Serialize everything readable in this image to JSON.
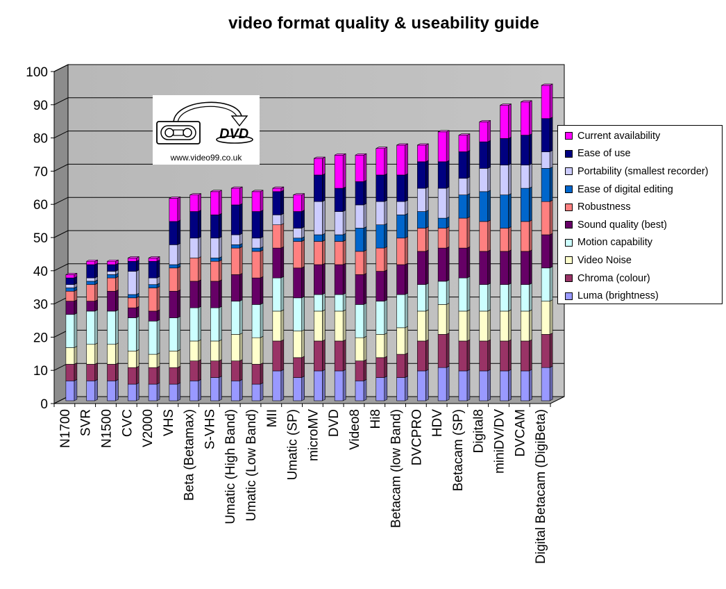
{
  "chart_data": {
    "type": "bar",
    "stacked": true,
    "title": "video format quality & useability guide",
    "ylim": [
      0,
      100
    ],
    "yticks": [
      0,
      10,
      20,
      30,
      40,
      50,
      60,
      70,
      80,
      90,
      100
    ],
    "grid": true,
    "legend_position": "right",
    "categories": [
      "N1700",
      "SVR",
      "N1500",
      "CVC",
      "V2000",
      "VHS",
      "Beta (Betamax)",
      "S-VHS",
      "Umatic (High Band)",
      "Umatic (Low Band)",
      "MII",
      "Umatic (SP)",
      "microMV",
      "DVD",
      "Video8",
      "Hi8",
      "Betacam (low Band)",
      "DVCPRO",
      "HDV",
      "Betacam (SP)",
      "Digital8",
      "miniDV/DV",
      "DVCAM",
      "Digital Betacam (DigiBeta)"
    ],
    "series": [
      {
        "name": "Luma (brightness)",
        "color": "#9999ff",
        "values": [
          6,
          6,
          6,
          5,
          5,
          5,
          6,
          7,
          6,
          5,
          9,
          7,
          9,
          9,
          6,
          7,
          7,
          9,
          10,
          9,
          9,
          9,
          9,
          10
        ]
      },
      {
        "name": "Chroma (colour)",
        "color": "#993366",
        "values": [
          5,
          5,
          5,
          5,
          5,
          5,
          6,
          5,
          6,
          6,
          9,
          6,
          9,
          9,
          6,
          6,
          7,
          9,
          10,
          9,
          9,
          9,
          9,
          10
        ]
      },
      {
        "name": "Video Noise",
        "color": "#ffffcc",
        "values": [
          5,
          6,
          6,
          5,
          4,
          5,
          6,
          6,
          8,
          8,
          9,
          8,
          9,
          9,
          7,
          7,
          8,
          9,
          9,
          9,
          9,
          9,
          9,
          10
        ]
      },
      {
        "name": "Motion capability",
        "color": "#ccffff",
        "values": [
          10,
          10,
          10,
          10,
          10,
          10,
          10,
          10,
          10,
          10,
          10,
          10,
          5,
          5,
          10,
          10,
          10,
          8,
          7,
          10,
          8,
          8,
          8,
          10
        ]
      },
      {
        "name": "Sound quality (best)",
        "color": "#660066",
        "values": [
          4,
          3,
          6,
          3,
          3,
          8,
          8,
          8,
          8,
          8,
          9,
          9,
          9,
          9,
          9,
          9,
          9,
          10,
          10,
          9,
          10,
          10,
          10,
          10
        ]
      },
      {
        "name": "Robustness",
        "color": "#ff8080",
        "values": [
          3,
          5,
          4,
          3,
          7,
          7,
          7,
          6,
          8,
          8,
          7,
          8,
          7,
          7,
          7,
          7,
          8,
          7,
          6,
          9,
          9,
          7,
          9,
          10
        ]
      },
      {
        "name": "Ease of digital editing",
        "color": "#0066cc",
        "values": [
          1,
          1,
          1,
          1,
          1,
          1,
          0,
          1,
          1,
          1,
          0,
          1,
          2,
          2,
          7,
          7,
          7,
          5,
          3,
          7,
          9,
          10,
          10,
          10
        ]
      },
      {
        "name": "Portability (smallest recorder)",
        "color": "#ccccff",
        "values": [
          1,
          1,
          1,
          7,
          2,
          6,
          6,
          6,
          3,
          3,
          3,
          3,
          10,
          7,
          7,
          7,
          4,
          7,
          9,
          5,
          7,
          9,
          7,
          5
        ]
      },
      {
        "name": "Ease of use",
        "color": "#000080",
        "values": [
          2,
          4,
          2,
          3,
          5,
          7,
          8,
          7,
          9,
          8,
          7,
          5,
          8,
          7,
          7,
          8,
          8,
          8,
          8,
          8,
          8,
          8,
          9,
          10
        ]
      },
      {
        "name": "Current availability",
        "color": "#ff00ff",
        "values": [
          1,
          1,
          1,
          1,
          1,
          7,
          5,
          7,
          5,
          6,
          1,
          5,
          5,
          10,
          8,
          8,
          9,
          5,
          9,
          5,
          6,
          10,
          10,
          10
        ]
      }
    ]
  },
  "logo": {
    "caption": "www.video99.co.uk",
    "mark_text": "DVD"
  }
}
